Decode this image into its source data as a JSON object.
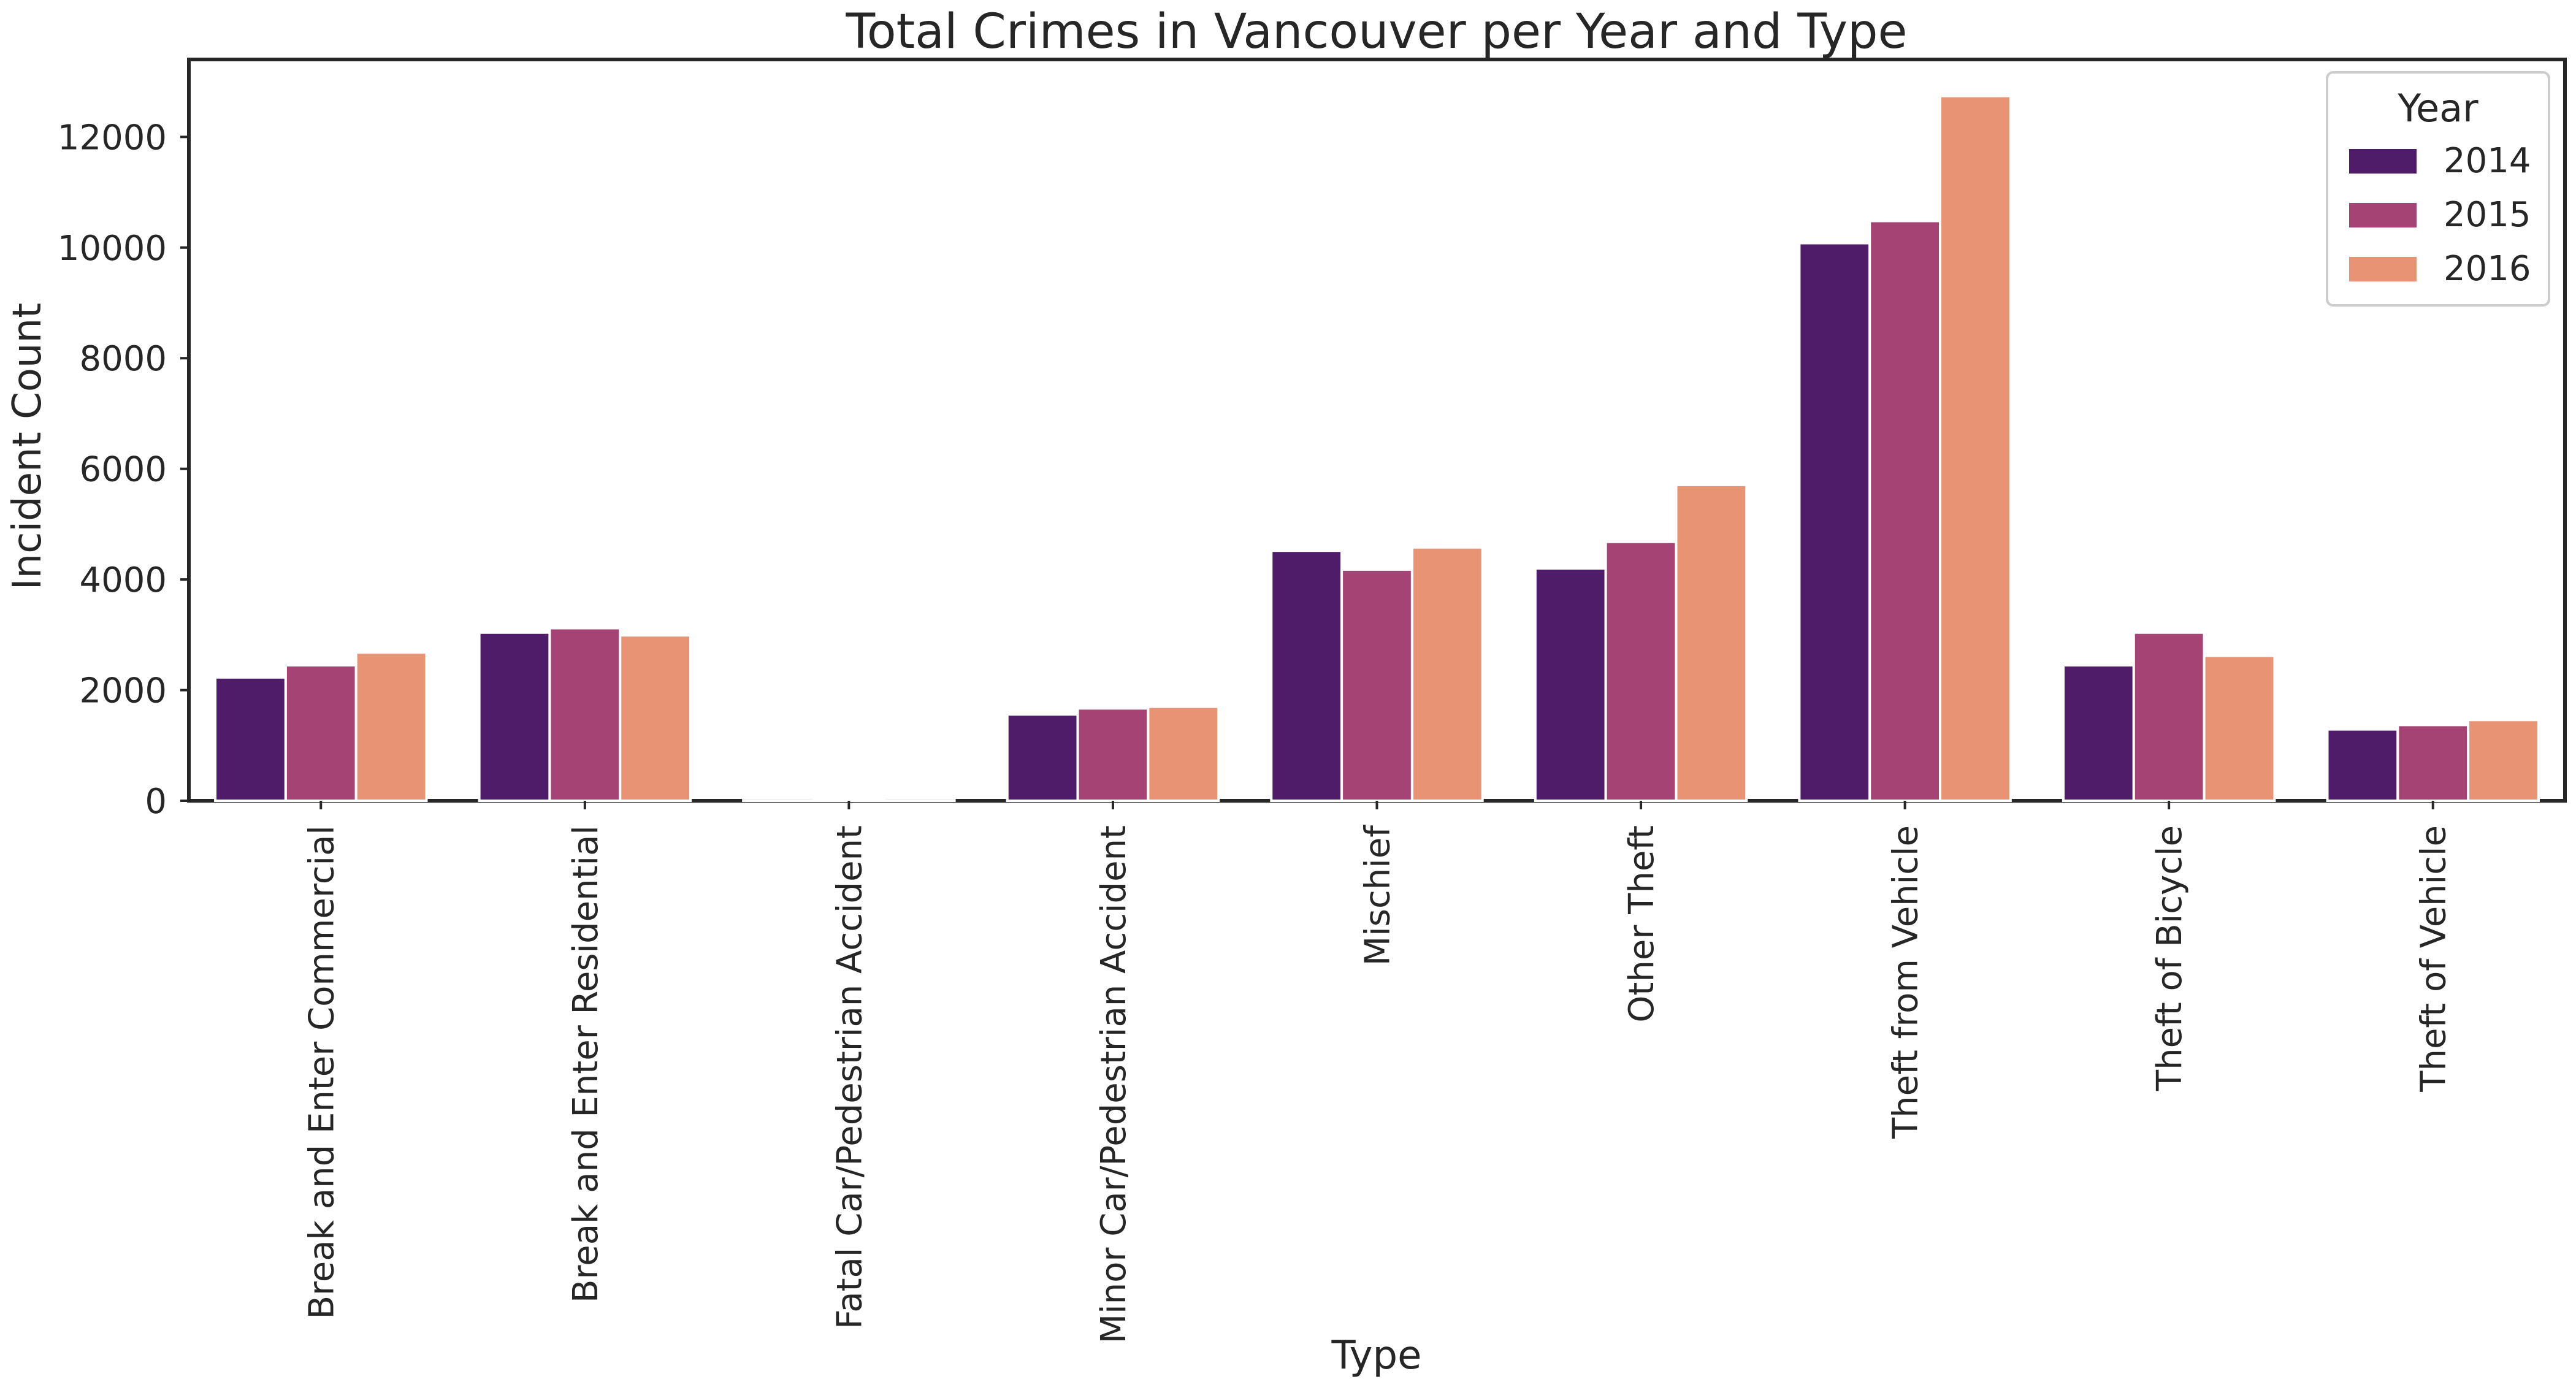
{
  "chart_data": {
    "type": "bar",
    "title": "Total Crimes in Vancouver per Year and Type",
    "xlabel": "Type",
    "ylabel": "Incident Count",
    "ylim": [
      0,
      13400
    ],
    "yticks": [
      0,
      2000,
      4000,
      6000,
      8000,
      10000,
      12000
    ],
    "yticklabels": [
      "0",
      "2000",
      "4000",
      "6000",
      "8000",
      "10000",
      "12000"
    ],
    "categories": [
      "Break and Enter Commercial",
      "Break and Enter Residential",
      "Fatal Car/Pedestrian Accident",
      "Minor Car/Pedestrian Accident",
      "Mischief",
      "Other Theft",
      "Theft from Vehicle",
      "Theft of Bicycle",
      "Theft of Vehicle"
    ],
    "series": [
      {
        "name": "2014",
        "color": "#4f1c69",
        "values": [
          2230,
          3040,
          10,
          1560,
          4520,
          4200,
          10080,
          2450,
          1290
        ]
      },
      {
        "name": "2015",
        "color": "#a54374",
        "values": [
          2450,
          3120,
          12,
          1670,
          4180,
          4680,
          10480,
          3040,
          1370
        ]
      },
      {
        "name": "2016",
        "color": "#e89373",
        "values": [
          2680,
          2990,
          10,
          1700,
          4580,
          5710,
          12740,
          2620,
          1460
        ]
      }
    ],
    "legend": {
      "title": "Year",
      "placement": "top-right"
    },
    "grid": false
  }
}
